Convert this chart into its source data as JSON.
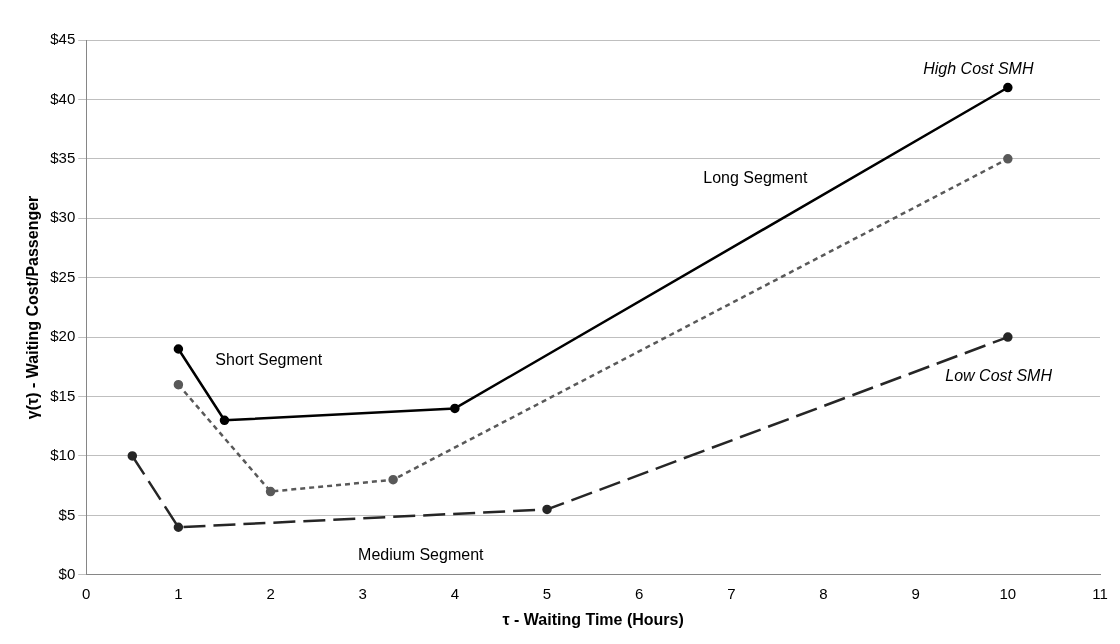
{
  "chart_data": {
    "type": "line",
    "xlabel": "τ - Waiting Time (Hours)",
    "ylabel": "γ(τ) - Waiting Cost/Passenger",
    "xlim": [
      0,
      11
    ],
    "xticks": [
      0,
      1,
      2,
      3,
      4,
      5,
      6,
      7,
      8,
      9,
      10,
      11
    ],
    "ylim": [
      0,
      45
    ],
    "yticks": [
      {
        "value": 0,
        "label": "$0"
      },
      {
        "value": 5,
        "label": "$5"
      },
      {
        "value": 10,
        "label": "$10"
      },
      {
        "value": 15,
        "label": "$15"
      },
      {
        "value": 20,
        "label": "$20"
      },
      {
        "value": 25,
        "label": "$25"
      },
      {
        "value": 30,
        "label": "$30"
      },
      {
        "value": 35,
        "label": "$35"
      },
      {
        "value": 40,
        "label": "$40"
      },
      {
        "value": 45,
        "label": "$45"
      }
    ],
    "grid": "y",
    "legend": false,
    "marker": "circle",
    "series": [
      {
        "color": "#000000",
        "line_style": "solid",
        "x": [
          1,
          1.5,
          4,
          10
        ],
        "values": [
          19,
          13,
          14,
          41
        ]
      },
      {
        "color": "#595959",
        "line_style": "dotted",
        "x": [
          1,
          2,
          3.33,
          10
        ],
        "values": [
          16,
          7,
          8,
          35
        ]
      },
      {
        "color": "#262626",
        "line_style": "dashed",
        "x": [
          0.5,
          1,
          5,
          10
        ],
        "values": [
          10,
          4,
          5.5,
          20
        ]
      }
    ],
    "annotations": [
      "High Cost SMH",
      "Long Segment",
      "Short Segment",
      "Medium Segment",
      "Low Cost SMH"
    ]
  }
}
